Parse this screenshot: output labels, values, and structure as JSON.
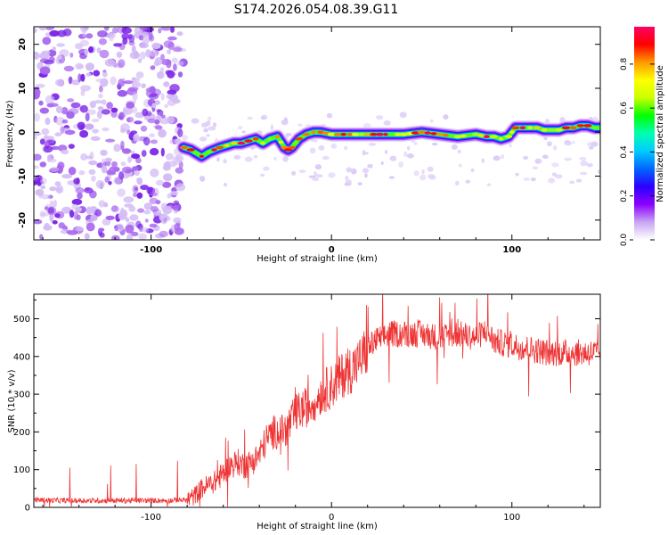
{
  "title": "S174.2026.054.08.39.G11",
  "chart_data": [
    {
      "type": "heatmap",
      "title": "S174.2026.054.08.39.G11",
      "xlabel": "Height of straight line (km)",
      "ylabel": "Frequency (Hz)",
      "xlim": [
        -165,
        149
      ],
      "ylim": [
        -24.5,
        24
      ],
      "xticks": [
        -100,
        0,
        100
      ],
      "yticks": [
        -20,
        -10,
        0,
        10,
        20
      ],
      "colorbar": {
        "label": "Normalized spectral amplitude",
        "range": [
          0,
          0.97
        ],
        "ticks": [
          0.0,
          0.2,
          0.4,
          0.6,
          0.8
        ],
        "colors": [
          "#ffffff",
          "#c9a6f2",
          "#8b00ff",
          "#2b00ff",
          "#0066ff",
          "#00ccff",
          "#00ffb0",
          "#00ff00",
          "#ccff00",
          "#ffff00",
          "#ff9900",
          "#ff0000",
          "#ff0066"
        ]
      },
      "noise_region_x": [
        -165,
        -82
      ],
      "signal_trace": {
        "x": [
          -82,
          -78,
          -72,
          -68,
          -62,
          -58,
          -54,
          -50,
          -46,
          -42,
          -38,
          -34,
          -30,
          -26,
          -24,
          -22,
          -18,
          -14,
          -10,
          -6,
          0,
          10,
          20,
          30,
          40,
          50,
          60,
          70,
          80,
          86,
          90,
          94,
          98,
          100,
          102,
          106,
          110,
          114,
          118,
          122,
          126,
          130,
          134,
          138,
          142,
          146,
          149
        ],
        "y": [
          -3.5,
          -4,
          -5.5,
          -4.5,
          -3.5,
          -3,
          -2.5,
          -2.5,
          -2,
          -1.5,
          -2.5,
          -1.5,
          -1,
          -3.5,
          -4,
          -3.5,
          -1.5,
          -0.5,
          0,
          0,
          -0.5,
          -0.5,
          -0.5,
          -0.5,
          -0.5,
          0,
          -0.5,
          -1,
          -0.5,
          -1,
          -1,
          -1.5,
          -1,
          0,
          1,
          1,
          1,
          1,
          0.5,
          0.5,
          0.5,
          1,
          1,
          1.5,
          1.5,
          1,
          1
        ],
        "peak_amplitude": 0.97
      }
    },
    {
      "type": "line",
      "xlabel": "Height of straight line (km)",
      "ylabel": "SNR (10 * v/v)",
      "xlim": [
        -165,
        149
      ],
      "ylim": [
        0,
        565
      ],
      "xticks": [
        -100,
        0,
        100
      ],
      "yticks": [
        0,
        100,
        200,
        300,
        400,
        500
      ],
      "series": [
        {
          "name": "SNR",
          "color": "#ee3333",
          "x": [
            -165,
            -150,
            -140,
            -120,
            -100,
            -90,
            -80,
            -76,
            -72,
            -68,
            -64,
            -60,
            -56,
            -52,
            -48,
            -44,
            -40,
            -36,
            -32,
            -28,
            -24,
            -20,
            -16,
            -12,
            -8,
            -4,
            0,
            4,
            8,
            12,
            16,
            20,
            24,
            28,
            32,
            36,
            40,
            50,
            60,
            70,
            80,
            86,
            90,
            100,
            110,
            120,
            130,
            140,
            149
          ],
          "y": [
            20,
            18,
            18,
            18,
            18,
            18,
            20,
            30,
            50,
            60,
            70,
            90,
            110,
            120,
            110,
            120,
            140,
            180,
            200,
            200,
            210,
            250,
            260,
            270,
            290,
            310,
            320,
            340,
            360,
            370,
            390,
            420,
            440,
            450,
            460,
            460,
            460,
            460,
            450,
            460,
            450,
            470,
            440,
            430,
            420,
            410,
            410,
            410,
            410
          ]
        }
      ]
    }
  ]
}
